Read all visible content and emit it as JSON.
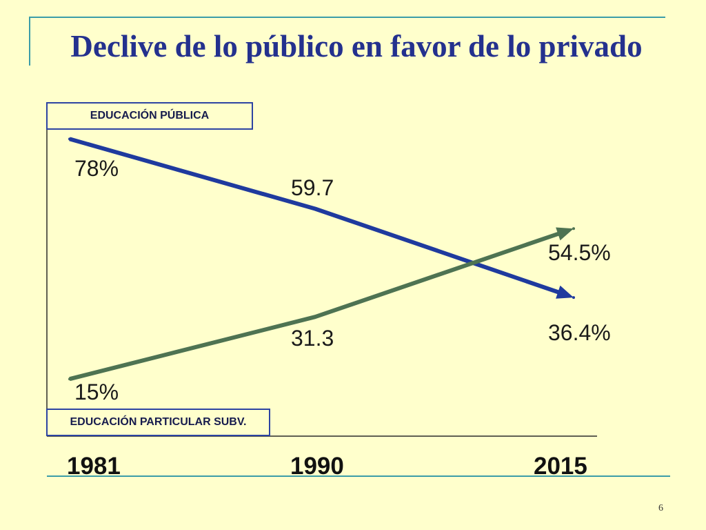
{
  "slide": {
    "page_number": "6"
  },
  "chart_data": {
    "type": "line",
    "title": "Declive de lo público en favor de lo privado",
    "categories": [
      "1981",
      "1990",
      "2015"
    ],
    "ylim": [
      0,
      100
    ],
    "series": [
      {
        "name": "EDUCACIÓN PÚBLICA",
        "values": [
          78,
          59.7,
          36.4
        ],
        "labels": [
          "78%",
          "59.7",
          "36.4%"
        ],
        "color": "#1F3A9E"
      },
      {
        "name": "EDUCACIÓN PARTICULAR SUBV.",
        "values": [
          15,
          31.3,
          54.5
        ],
        "labels": [
          "15%",
          "31.3",
          "54.5%"
        ],
        "color": "#4E7352"
      }
    ]
  }
}
